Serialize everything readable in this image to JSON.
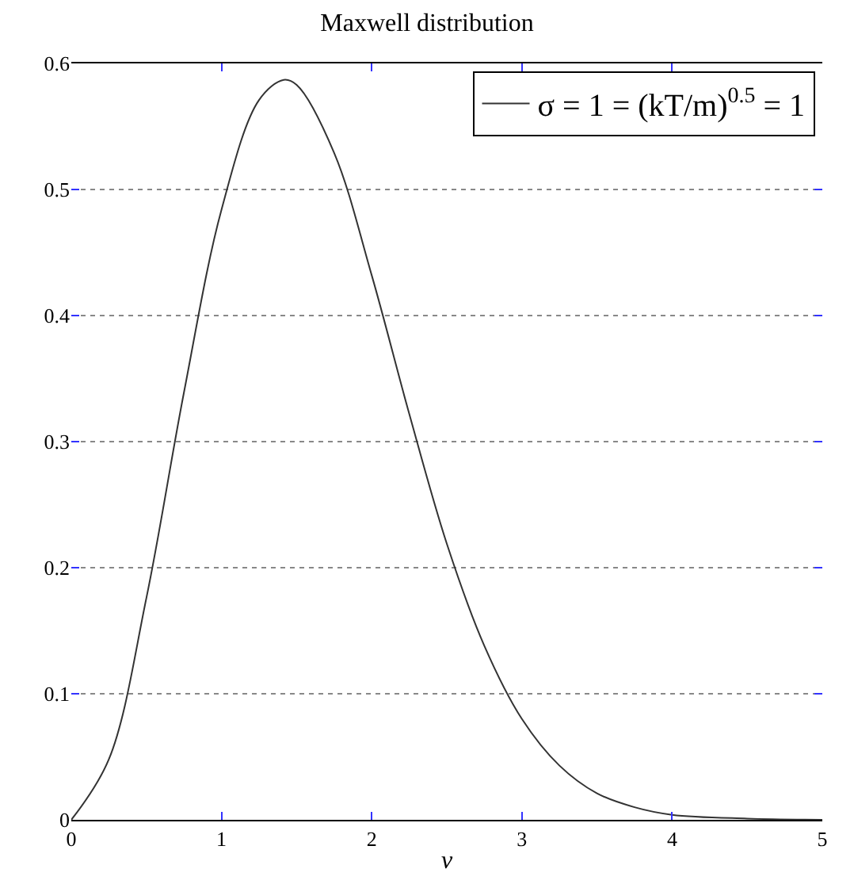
{
  "chart_data": {
    "type": "line",
    "title": "Maxwell distribution",
    "xlabel": "v",
    "x": [
      0,
      0.25,
      0.5,
      0.75,
      1,
      1.25,
      1.414,
      1.5,
      1.75,
      2,
      2.25,
      2.5,
      2.75,
      3,
      3.25,
      3.5,
      3.75,
      4,
      4.5,
      5
    ],
    "series": [
      {
        "name": "σ = 1 = (kT/m)$^{0.5}$ = 1",
        "color": "#333333",
        "values": [
          0,
          0.048,
          0.176,
          0.339,
          0.484,
          0.571,
          0.587,
          0.583,
          0.529,
          0.432,
          0.322,
          0.219,
          0.138,
          0.08,
          0.043,
          0.021,
          0.01,
          0.004,
          0.001,
          0
        ]
      }
    ],
    "xlim": [
      0,
      5
    ],
    "xticks": [
      0,
      1,
      2,
      3,
      4,
      5
    ],
    "ylim": [
      0,
      0.6
    ],
    "yticks": [
      0,
      0.1,
      0.2,
      0.3,
      0.4,
      0.5,
      0.6
    ],
    "grid": "y",
    "legend": "top right",
    "marker": "none",
    "line_style": "solid"
  }
}
